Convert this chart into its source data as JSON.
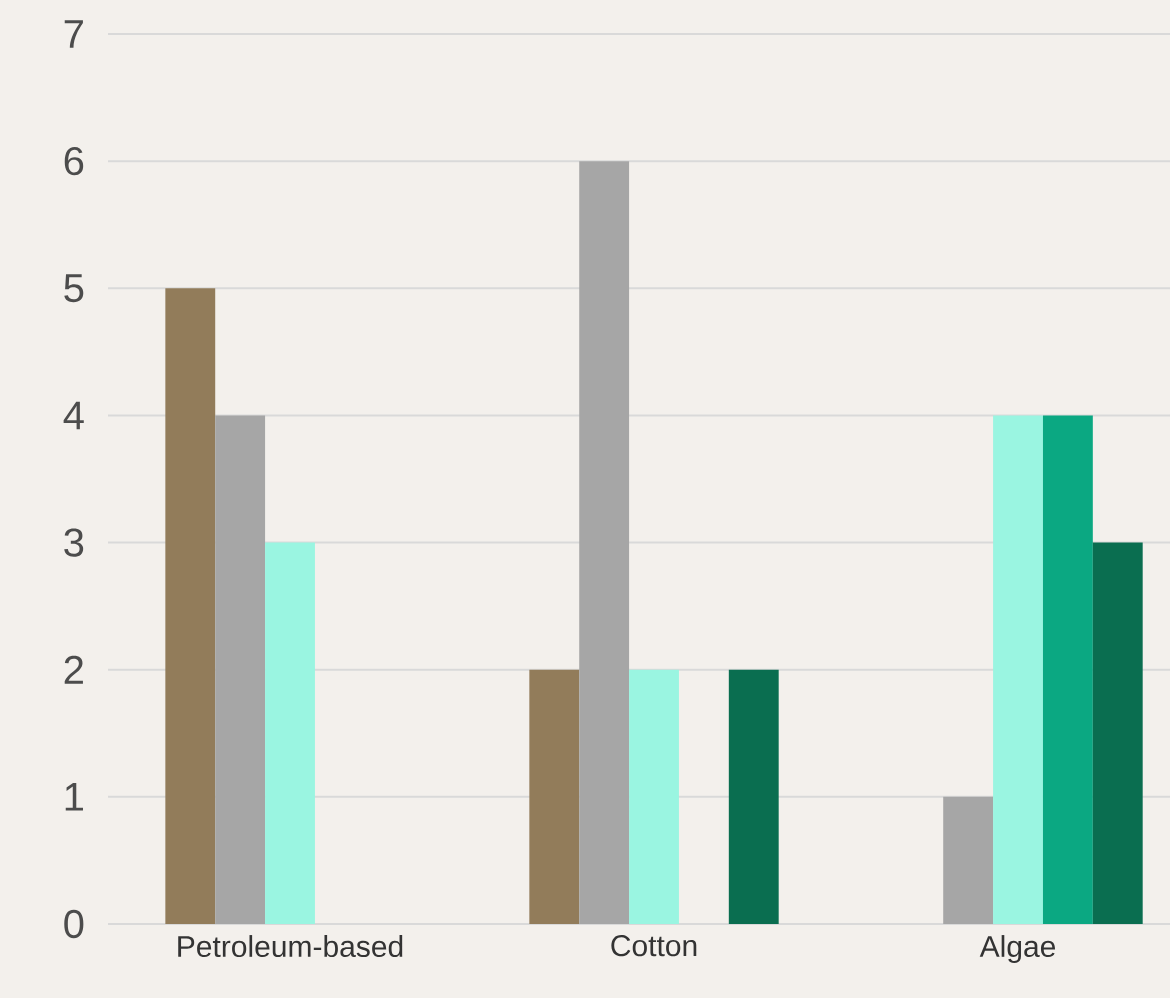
{
  "chart_data": {
    "type": "bar",
    "categories": [
      "Petroleum-based",
      "Cotton",
      "Algae"
    ],
    "series": [
      {
        "color": "#927c5a",
        "values": [
          5,
          2,
          null
        ]
      },
      {
        "color": "#a6a6a6",
        "values": [
          4,
          6,
          1
        ]
      },
      {
        "color": "#9af5e1",
        "values": [
          3,
          2,
          4
        ]
      },
      {
        "color": "#0ba882",
        "values": [
          null,
          null,
          4
        ]
      },
      {
        "color": "#0a6e50",
        "values": [
          null,
          2,
          3
        ]
      }
    ],
    "ylim": [
      0,
      7
    ],
    "yticks": [
      0,
      1,
      2,
      3,
      4,
      5,
      6,
      7
    ],
    "grid": "y"
  }
}
